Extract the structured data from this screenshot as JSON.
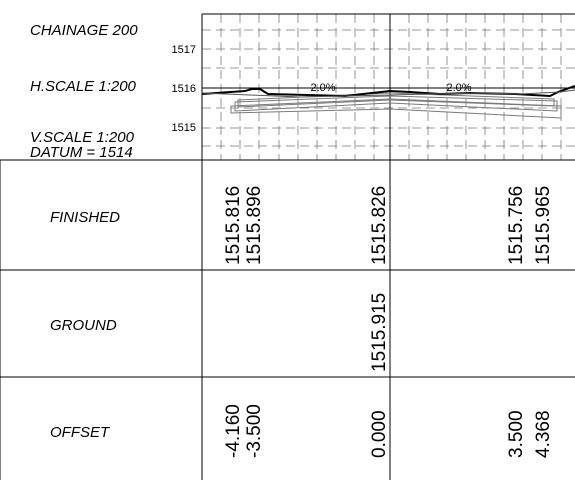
{
  "header": {
    "chainage": "CHAINAGE 200",
    "h_scale": "H.SCALE 1:200",
    "v_scale": "V.SCALE 1:200",
    "datum": "DATUM = 1514"
  },
  "axis": {
    "elevation_ticks": [
      "1517",
      "1516",
      "1515"
    ]
  },
  "grades": [
    "2.0%",
    "2.0%"
  ],
  "rows": [
    {
      "label": "FINISHED",
      "values": [
        "1515.816",
        "1515.896",
        "1515.826",
        "1515.756",
        "1515.965"
      ]
    },
    {
      "label": "GROUND",
      "values": [
        "1515.915"
      ]
    },
    {
      "label": "OFFSET",
      "values": [
        "-4.160",
        "-3.500",
        "0.000",
        "3.500",
        "4.368"
      ]
    }
  ],
  "colors": {
    "line": "#000000",
    "grid": "#7a7a7a",
    "background": "#ffffff"
  }
}
